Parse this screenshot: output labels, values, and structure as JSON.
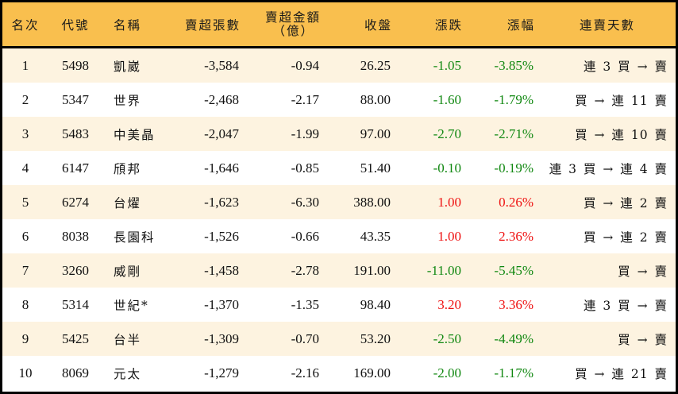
{
  "colors": {
    "header_bg": "#F9BF4E",
    "row_odd_bg": "#FDF3E0",
    "row_even_bg": "#FFFFFF",
    "up": "#EE1111",
    "down": "#118811",
    "border": "#000000"
  },
  "header": {
    "rank": "名次",
    "code": "代號",
    "name": "名稱",
    "net_sell_lots": "賣超張數",
    "net_sell_amount_line1": "賣超金額",
    "net_sell_amount_line2": "（億）",
    "close": "收盤",
    "change": "漲跌",
    "change_pct": "漲幅",
    "consecutive_sell_days": "連賣天數"
  },
  "rows": [
    {
      "rank": "1",
      "code": "5498",
      "name": "凱崴",
      "lots": "-3,584",
      "amount": "-0.94",
      "close": "26.25",
      "change": "-1.05",
      "pct": "-3.85%",
      "trend": "down",
      "days": "連 3 買 → 賣"
    },
    {
      "rank": "2",
      "code": "5347",
      "name": "世界",
      "lots": "-2,468",
      "amount": "-2.17",
      "close": "88.00",
      "change": "-1.60",
      "pct": "-1.79%",
      "trend": "down",
      "days": "買 → 連 11 賣"
    },
    {
      "rank": "3",
      "code": "5483",
      "name": "中美晶",
      "lots": "-2,047",
      "amount": "-1.99",
      "close": "97.00",
      "change": "-2.70",
      "pct": "-2.71%",
      "trend": "down",
      "days": "買 → 連 10 賣"
    },
    {
      "rank": "4",
      "code": "6147",
      "name": "頎邦",
      "lots": "-1,646",
      "amount": "-0.85",
      "close": "51.40",
      "change": "-0.10",
      "pct": "-0.19%",
      "trend": "down",
      "days": "連 3 買 → 連 4 賣"
    },
    {
      "rank": "5",
      "code": "6274",
      "name": "台燿",
      "lots": "-1,623",
      "amount": "-6.30",
      "close": "388.00",
      "change": "1.00",
      "pct": "0.26%",
      "trend": "up",
      "days": "買 → 連 2 賣"
    },
    {
      "rank": "6",
      "code": "8038",
      "name": "長園科",
      "lots": "-1,526",
      "amount": "-0.66",
      "close": "43.35",
      "change": "1.00",
      "pct": "2.36%",
      "trend": "up",
      "days": "買 → 連 2 賣"
    },
    {
      "rank": "7",
      "code": "3260",
      "name": "威剛",
      "lots": "-1,458",
      "amount": "-2.78",
      "close": "191.00",
      "change": "-11.00",
      "pct": "-5.45%",
      "trend": "down",
      "days": "買 → 賣"
    },
    {
      "rank": "8",
      "code": "5314",
      "name": "世紀*",
      "lots": "-1,370",
      "amount": "-1.35",
      "close": "98.40",
      "change": "3.20",
      "pct": "3.36%",
      "trend": "up",
      "days": "連 3 買 → 賣"
    },
    {
      "rank": "9",
      "code": "5425",
      "name": "台半",
      "lots": "-1,309",
      "amount": "-0.70",
      "close": "53.20",
      "change": "-2.50",
      "pct": "-4.49%",
      "trend": "down",
      "days": "買 → 賣"
    },
    {
      "rank": "10",
      "code": "8069",
      "name": "元太",
      "lots": "-1,279",
      "amount": "-2.16",
      "close": "169.00",
      "change": "-2.00",
      "pct": "-1.17%",
      "trend": "down",
      "days": "買 → 連 21 賣"
    }
  ]
}
